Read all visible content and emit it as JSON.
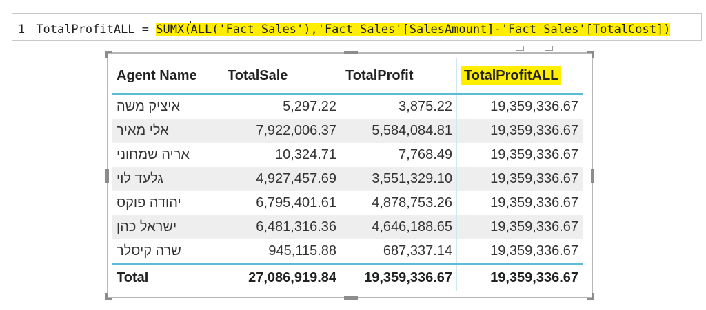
{
  "formula": {
    "line_number": "1",
    "measure_name": "TotalProfitALL",
    "equals": "=",
    "expr_part1": "SUMX(",
    "expr_part2": "ALL('Fact Sales'),'Fact Sales'[SalesAmount]-'Fact Sales'[TotalCost])",
    "highlight_color": "#ffee00"
  },
  "table": {
    "headers": [
      "Agent Name",
      "TotalSale",
      "TotalProfit",
      "TotalProfitALL"
    ],
    "rows": [
      {
        "name": "איציק משה",
        "sale": "5,297.22",
        "profit": "3,875.22",
        "profit_all": "19,359,336.67"
      },
      {
        "name": "אלי מאיר",
        "sale": "7,922,006.37",
        "profit": "5,584,084.81",
        "profit_all": "19,359,336.67"
      },
      {
        "name": "אריה שמחוני",
        "sale": "10,324.71",
        "profit": "7,768.49",
        "profit_all": "19,359,336.67"
      },
      {
        "name": "גלעד לוי",
        "sale": "4,927,457.69",
        "profit": "3,551,329.10",
        "profit_all": "19,359,336.67"
      },
      {
        "name": "יהודה פוקס",
        "sale": "6,795,401.61",
        "profit": "4,878,753.26",
        "profit_all": "19,359,336.67"
      },
      {
        "name": "ישראל כהן",
        "sale": "6,481,316.36",
        "profit": "4,646,188.65",
        "profit_all": "19,359,336.67"
      },
      {
        "name": "שרה קיסלר",
        "sale": "945,115.88",
        "profit": "687,337.14",
        "profit_all": "19,359,336.67"
      }
    ],
    "total": {
      "label": "Total",
      "sale": "27,086,919.84",
      "profit": "19,359,336.67",
      "profit_all": "19,359,336.67"
    },
    "accent_color": "#5bbcd6",
    "alt_row_color": "#eeeeee"
  }
}
